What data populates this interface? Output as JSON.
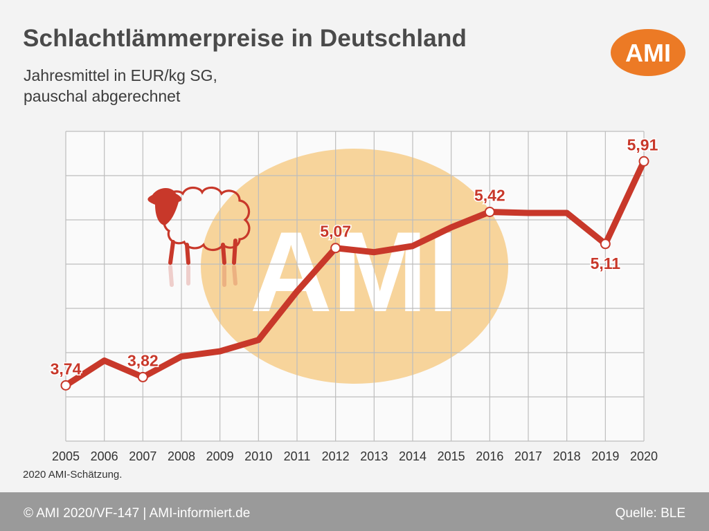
{
  "header": {
    "title": "Schlachtlämmerpreise in Deutschland",
    "subtitle_line1": "Jahresmittel in EUR/kg SG,",
    "subtitle_line2": "pauschal abgerechnet",
    "logo_text": "AMI"
  },
  "watermark_text": "AMI",
  "footnote": "2020 AMI-Schätzung.",
  "footer": {
    "copyright": "© AMI 2020/VF-147 | AMI-informiert.de",
    "source": "Quelle: BLE"
  },
  "colors": {
    "line": "#c8382a",
    "accent_orange": "#ec7a25",
    "watermark": "#f7d49b",
    "footer": "#9a9a9a",
    "grid": "#bdbdbd"
  },
  "icons": [
    "sheep-icon"
  ],
  "chart_data": {
    "type": "line",
    "title": "Schlachtlämmerpreise in Deutschland",
    "subtitle": "Jahresmittel in EUR/kg SG, pauschal abgerechnet",
    "xlabel": "",
    "ylabel": "",
    "grid": true,
    "x": [
      "2005",
      "2006",
      "2007",
      "2008",
      "2009",
      "2010",
      "2011",
      "2012",
      "2013",
      "2014",
      "2015",
      "2016",
      "2017",
      "2018",
      "2019",
      "2020"
    ],
    "series": [
      {
        "values": [
          3.74,
          3.98,
          3.82,
          4.02,
          4.07,
          4.18,
          4.65,
          5.07,
          5.03,
          5.09,
          5.27,
          5.42,
          5.41,
          5.41,
          5.11,
          5.91
        ]
      }
    ],
    "ylim": [
      3.2,
      6.2
    ],
    "data_labels": [
      {
        "index": 0,
        "text": "3,74"
      },
      {
        "index": 2,
        "text": "3,82"
      },
      {
        "index": 7,
        "text": "5,07"
      },
      {
        "index": 11,
        "text": "5,42"
      },
      {
        "index": 14,
        "text": "5,11"
      },
      {
        "index": 15,
        "text": "5,91"
      }
    ]
  }
}
